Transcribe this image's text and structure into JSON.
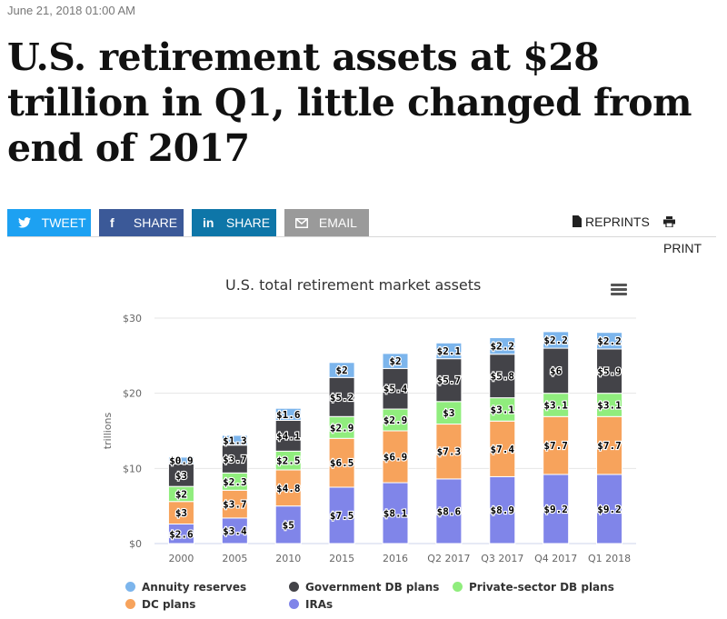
{
  "article": {
    "date": "June 21, 2018 01:00 AM",
    "headline": "U.S. retirement assets at $28 trillion in Q1, little changed from end of 2017"
  },
  "share": {
    "tweet": "TWEET",
    "facebook": "SHARE",
    "linkedin": "SHARE",
    "email": "EMAIL",
    "reprints": "REPRINTS",
    "print": "PRINT"
  },
  "chart_data": {
    "type": "bar",
    "stacked": true,
    "title": "U.S. total retirement market assets",
    "ylabel": "trillions",
    "xlabel": "",
    "ylim": [
      0,
      30
    ],
    "yticks": [
      0,
      10,
      20,
      30
    ],
    "ytick_labels": [
      "$0",
      "$10",
      "$20",
      "$30"
    ],
    "categories": [
      "2000",
      "2005",
      "2010",
      "2015",
      "2016",
      "Q2 2017",
      "Q3 2017",
      "Q4 2017",
      "Q1 2018"
    ],
    "series": [
      {
        "name": "IRAs",
        "color": "#8085e9",
        "values": [
          2.6,
          3.4,
          5,
          7.5,
          8.1,
          8.6,
          8.9,
          9.2,
          9.2
        ],
        "labels": [
          "$2.6",
          "$3.4",
          "$5",
          "$7.5",
          "$8.1",
          "$8.6",
          "$8.9",
          "$9.2",
          "$9.2"
        ]
      },
      {
        "name": "DC plans",
        "color": "#f7a35c",
        "values": [
          3,
          3.7,
          4.8,
          6.5,
          6.9,
          7.3,
          7.4,
          7.7,
          7.7
        ],
        "labels": [
          "$3",
          "$3.7",
          "$4.8",
          "$6.5",
          "$6.9",
          "$7.3",
          "$7.4",
          "$7.7",
          "$7.7"
        ]
      },
      {
        "name": "Private-sector DB plans",
        "color": "#90ed7d",
        "values": [
          2,
          2.3,
          2.5,
          2.9,
          2.9,
          3,
          3.1,
          3.1,
          3.1
        ],
        "labels": [
          "$2",
          "$2.3",
          "$2.5",
          "$2.9",
          "$2.9",
          "$3",
          "$3.1",
          "$3.1",
          "$3.1"
        ]
      },
      {
        "name": "Government DB plans",
        "color": "#434348",
        "values": [
          3,
          3.7,
          4.1,
          5.2,
          5.4,
          5.7,
          5.8,
          6,
          5.9
        ],
        "labels": [
          "$3",
          "$3.7",
          "$4.1",
          "$5.2",
          "$5.4",
          "$5.7",
          "$5.8",
          "$6",
          "$5.9"
        ]
      },
      {
        "name": "Annuity reserves",
        "color": "#7cb5ec",
        "values": [
          0.9,
          1.3,
          1.6,
          2,
          2,
          2.1,
          2.2,
          2.2,
          2.2
        ],
        "labels": [
          "$0.9",
          "$1.3",
          "$1.6",
          "$2",
          "$2",
          "$2.1",
          "$2.2",
          "$2.2",
          "$2.2"
        ]
      }
    ],
    "legend": [
      {
        "name": "Annuity reserves",
        "color": "#7cb5ec"
      },
      {
        "name": "Government DB plans",
        "color": "#434348"
      },
      {
        "name": "Private-sector DB plans",
        "color": "#90ed7d"
      },
      {
        "name": "DC plans",
        "color": "#f7a35c"
      },
      {
        "name": "IRAs",
        "color": "#8085e9"
      }
    ]
  }
}
